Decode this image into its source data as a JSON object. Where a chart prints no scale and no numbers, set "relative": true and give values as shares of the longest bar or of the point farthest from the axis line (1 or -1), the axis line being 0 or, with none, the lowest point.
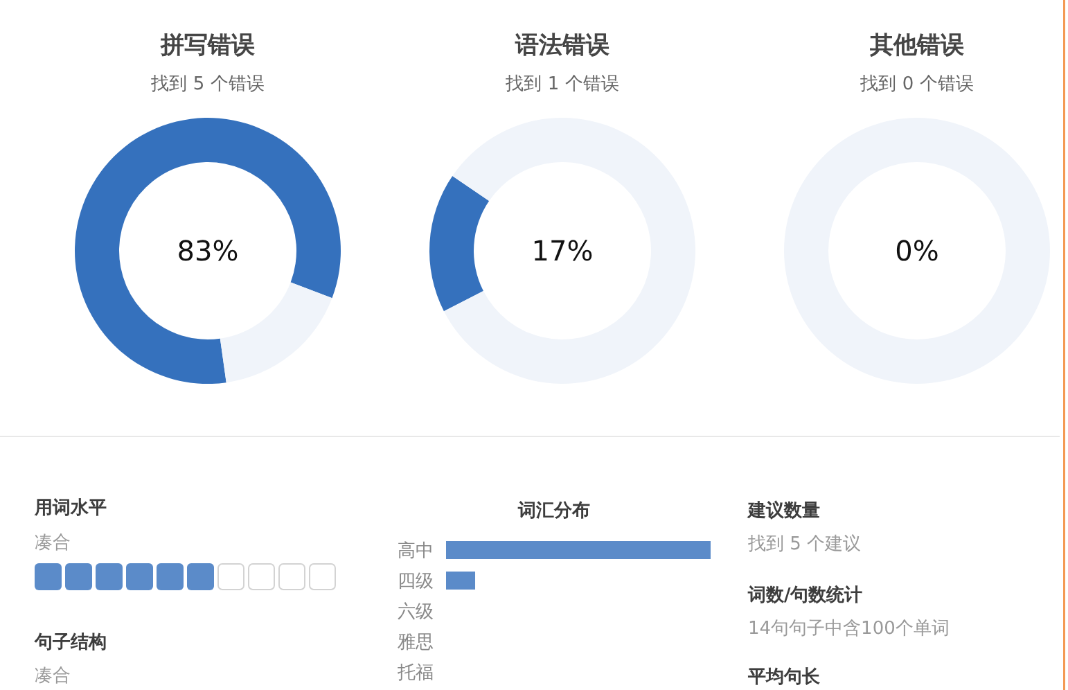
{
  "chart_data": [
    {
      "type": "donut",
      "title": "拼写错误",
      "subtitle": "找到 5 个错误",
      "categories": [
        null,
        null
      ],
      "values": [
        83,
        17
      ],
      "colors": [
        "#3571bd",
        "#f0f4fa"
      ],
      "annotations": [
        "83%"
      ]
    },
    {
      "type": "donut",
      "title": "语法错误",
      "subtitle": "找到 1 个错误",
      "categories": [
        null,
        null
      ],
      "values": [
        17,
        83
      ],
      "colors": [
        "#3571bd",
        "#f0f4fa"
      ],
      "annotations": [
        "17%"
      ]
    },
    {
      "type": "donut",
      "title": "其他错误",
      "subtitle": "找到 0 个错误",
      "categories": [
        null,
        null
      ],
      "values": [
        0,
        100
      ],
      "colors": [
        null,
        "#f0f4fa"
      ],
      "annotations": [
        "0%"
      ]
    },
    {
      "type": "other",
      "title": "用词水平",
      "subtitle": "凑合"
    },
    {
      "type": "other",
      "title": "句子结构",
      "subtitle": "凑合"
    },
    {
      "type": "bar",
      "orientation": "horizontal",
      "title": "词汇分布",
      "categories": [
        "高中",
        "四级",
        "六级",
        "雅思",
        "托福"
      ],
      "values": [
        1,
        0.11,
        0,
        0,
        0
      ],
      "relative": true,
      "color": "#5b8bc9"
    },
    {
      "type": "other",
      "title": "建议数量",
      "subtitle": "找到 5 个建议"
    },
    {
      "type": "other",
      "title": "词数/句数统计",
      "subtitle": "14句句子中含100个单词"
    },
    {
      "type": "other",
      "title": "平均句长"
    }
  ]
}
